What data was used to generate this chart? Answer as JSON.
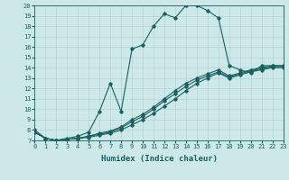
{
  "xlabel": "Humidex (Indice chaleur)",
  "xlim": [
    0,
    23
  ],
  "ylim": [
    7,
    20
  ],
  "xticks": [
    0,
    1,
    2,
    3,
    4,
    5,
    6,
    7,
    8,
    9,
    10,
    11,
    12,
    13,
    14,
    15,
    16,
    17,
    18,
    19,
    20,
    21,
    22,
    23
  ],
  "yticks": [
    7,
    8,
    9,
    10,
    11,
    12,
    13,
    14,
    15,
    16,
    17,
    18,
    19,
    20
  ],
  "background_color": "#cce8e8",
  "line_color": "#1a6060",
  "grid_color": "#b0d0d0",
  "curves": [
    {
      "x": [
        0,
        1,
        2,
        3,
        4,
        5,
        6,
        7,
        8,
        9,
        10,
        11,
        12,
        13,
        14,
        15,
        16,
        17,
        18,
        19,
        20,
        21,
        22,
        23
      ],
      "y": [
        8.0,
        7.2,
        7.0,
        7.2,
        7.4,
        7.8,
        9.8,
        12.5,
        9.8,
        15.8,
        16.2,
        18.0,
        19.2,
        18.8,
        20.0,
        20.0,
        19.5,
        18.8,
        14.2,
        13.8,
        13.5,
        14.2,
        14.2,
        14.2
      ]
    },
    {
      "x": [
        0,
        1,
        2,
        3,
        4,
        5,
        6,
        7,
        8,
        9,
        10,
        11,
        12,
        13,
        14,
        15,
        16,
        17,
        18,
        19,
        20,
        21,
        22,
        23
      ],
      "y": [
        7.8,
        7.2,
        7.0,
        7.1,
        7.2,
        7.3,
        7.5,
        7.7,
        8.0,
        8.5,
        9.0,
        9.6,
        10.3,
        11.0,
        11.8,
        12.5,
        13.0,
        13.5,
        13.0,
        13.3,
        13.6,
        13.8,
        14.0,
        14.0
      ]
    },
    {
      "x": [
        0,
        1,
        2,
        3,
        4,
        5,
        6,
        7,
        8,
        9,
        10,
        11,
        12,
        13,
        14,
        15,
        16,
        17,
        18,
        19,
        20,
        21,
        22,
        23
      ],
      "y": [
        7.8,
        7.2,
        7.0,
        7.1,
        7.2,
        7.4,
        7.6,
        7.8,
        8.2,
        8.8,
        9.3,
        10.0,
        10.8,
        11.5,
        12.2,
        12.8,
        13.2,
        13.6,
        13.1,
        13.4,
        13.7,
        13.9,
        14.1,
        14.1
      ]
    },
    {
      "x": [
        0,
        1,
        2,
        3,
        4,
        5,
        6,
        7,
        8,
        9,
        10,
        11,
        12,
        13,
        14,
        15,
        16,
        17,
        18,
        19,
        20,
        21,
        22,
        23
      ],
      "y": [
        7.8,
        7.2,
        7.0,
        7.1,
        7.2,
        7.4,
        7.7,
        7.9,
        8.3,
        9.0,
        9.5,
        10.2,
        11.0,
        11.8,
        12.5,
        13.0,
        13.4,
        13.8,
        13.2,
        13.5,
        13.8,
        14.0,
        14.2,
        14.2
      ]
    }
  ],
  "marker": "D",
  "marker_size": 1.8,
  "line_width": 0.8,
  "font_family": "monospace",
  "tick_fontsize": 5.0,
  "xlabel_fontsize": 6.5
}
